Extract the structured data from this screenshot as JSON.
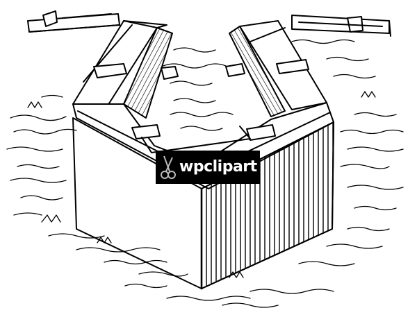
{
  "illustration": {
    "subject": "wooden-corner-structure-icon"
  },
  "watermark": {
    "text": "wpclipart",
    "background": "#000000",
    "color": "#ffffff",
    "icon": "scissors-icon"
  },
  "colors": {
    "ink": "#000000",
    "paper": "#ffffff"
  }
}
